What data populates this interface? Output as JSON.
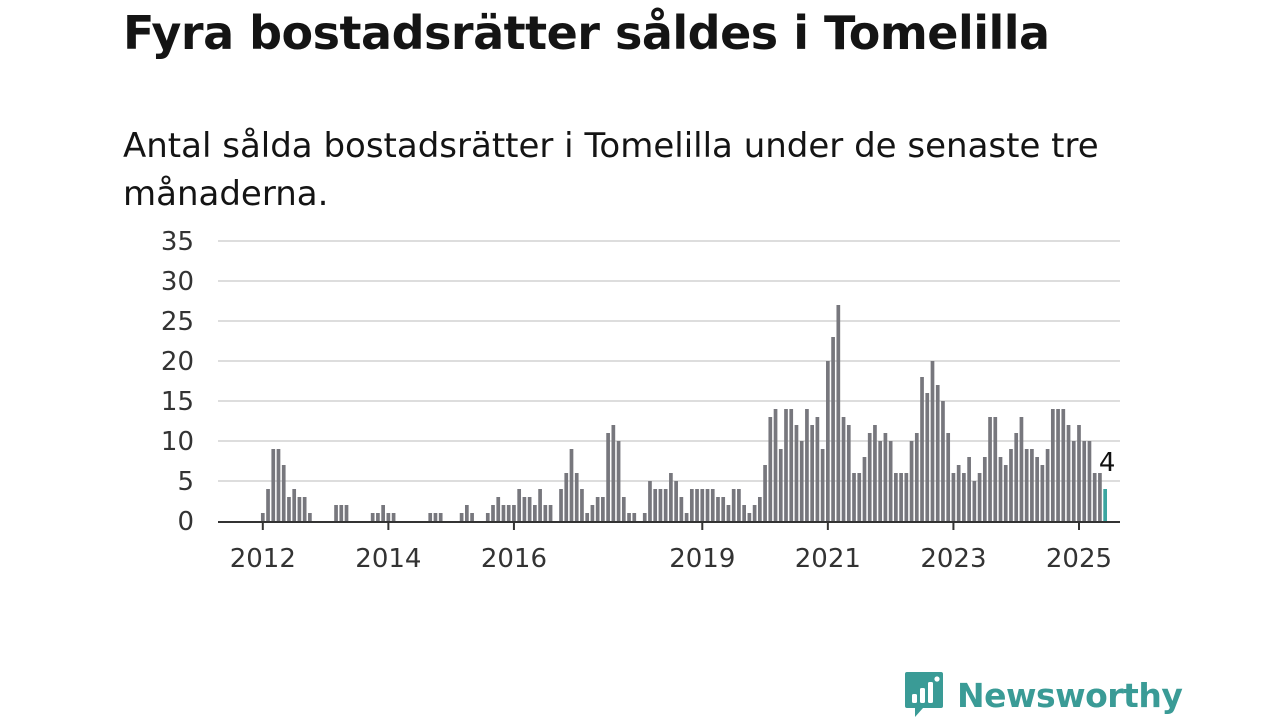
{
  "title": "Fyra bostadsrätter såldes i Tomelilla",
  "subtitle": "Antal sålda bostadsrätter i Tomelilla under de senaste tre månaderna.",
  "brand": {
    "name": "Newsworthy",
    "color": "#3a9b96",
    "icon": "newsworthy-chart-bubble-icon"
  },
  "colors": {
    "bar": "#77777d",
    "highlight": "#3aa6a0",
    "grid": "#dddddd",
    "axis": "#333333"
  },
  "chart_data": {
    "type": "bar",
    "x_unit": "month",
    "x_start": "2012-01",
    "ylim": [
      0,
      35
    ],
    "yticks": [
      0,
      5,
      10,
      15,
      20,
      25,
      30,
      35
    ],
    "xtick_labels": [
      {
        "label": "2012",
        "at": "2012-01"
      },
      {
        "label": "2014",
        "at": "2014-01"
      },
      {
        "label": "2016",
        "at": "2016-01"
      },
      {
        "label": "2019",
        "at": "2019-01"
      },
      {
        "label": "2021",
        "at": "2021-01"
      },
      {
        "label": "2023",
        "at": "2023-01"
      },
      {
        "label": "2025",
        "at": "2025-01"
      }
    ],
    "grid": true,
    "values": [
      1,
      4,
      9,
      9,
      7,
      3,
      4,
      3,
      3,
      1,
      0,
      0,
      0,
      0,
      2,
      2,
      2,
      0,
      0,
      0,
      0,
      1,
      1,
      2,
      1,
      1,
      0,
      0,
      0,
      0,
      0,
      0,
      1,
      1,
      1,
      0,
      0,
      0,
      1,
      2,
      1,
      0,
      0,
      1,
      2,
      3,
      2,
      2,
      2,
      4,
      3,
      3,
      2,
      4,
      2,
      2,
      0,
      4,
      6,
      9,
      6,
      4,
      1,
      2,
      3,
      3,
      11,
      12,
      10,
      3,
      1,
      1,
      0,
      1,
      5,
      4,
      4,
      4,
      6,
      5,
      3,
      1,
      4,
      4,
      4,
      4,
      4,
      3,
      3,
      2,
      4,
      4,
      2,
      1,
      2,
      3,
      7,
      13,
      14,
      9,
      14,
      14,
      12,
      10,
      14,
      12,
      13,
      9,
      20,
      23,
      27,
      13,
      12,
      6,
      6,
      8,
      11,
      12,
      10,
      11,
      10,
      6,
      6,
      6,
      10,
      11,
      18,
      16,
      20,
      17,
      15,
      11,
      6,
      7,
      6,
      8,
      5,
      6,
      8,
      13,
      13,
      8,
      7,
      9,
      11,
      13,
      9,
      9,
      8,
      7,
      9,
      14,
      14,
      14,
      12,
      10,
      12,
      10,
      10,
      6,
      6,
      4
    ],
    "highlight_last": 1,
    "annotation": {
      "label": "4",
      "value": 4
    }
  }
}
